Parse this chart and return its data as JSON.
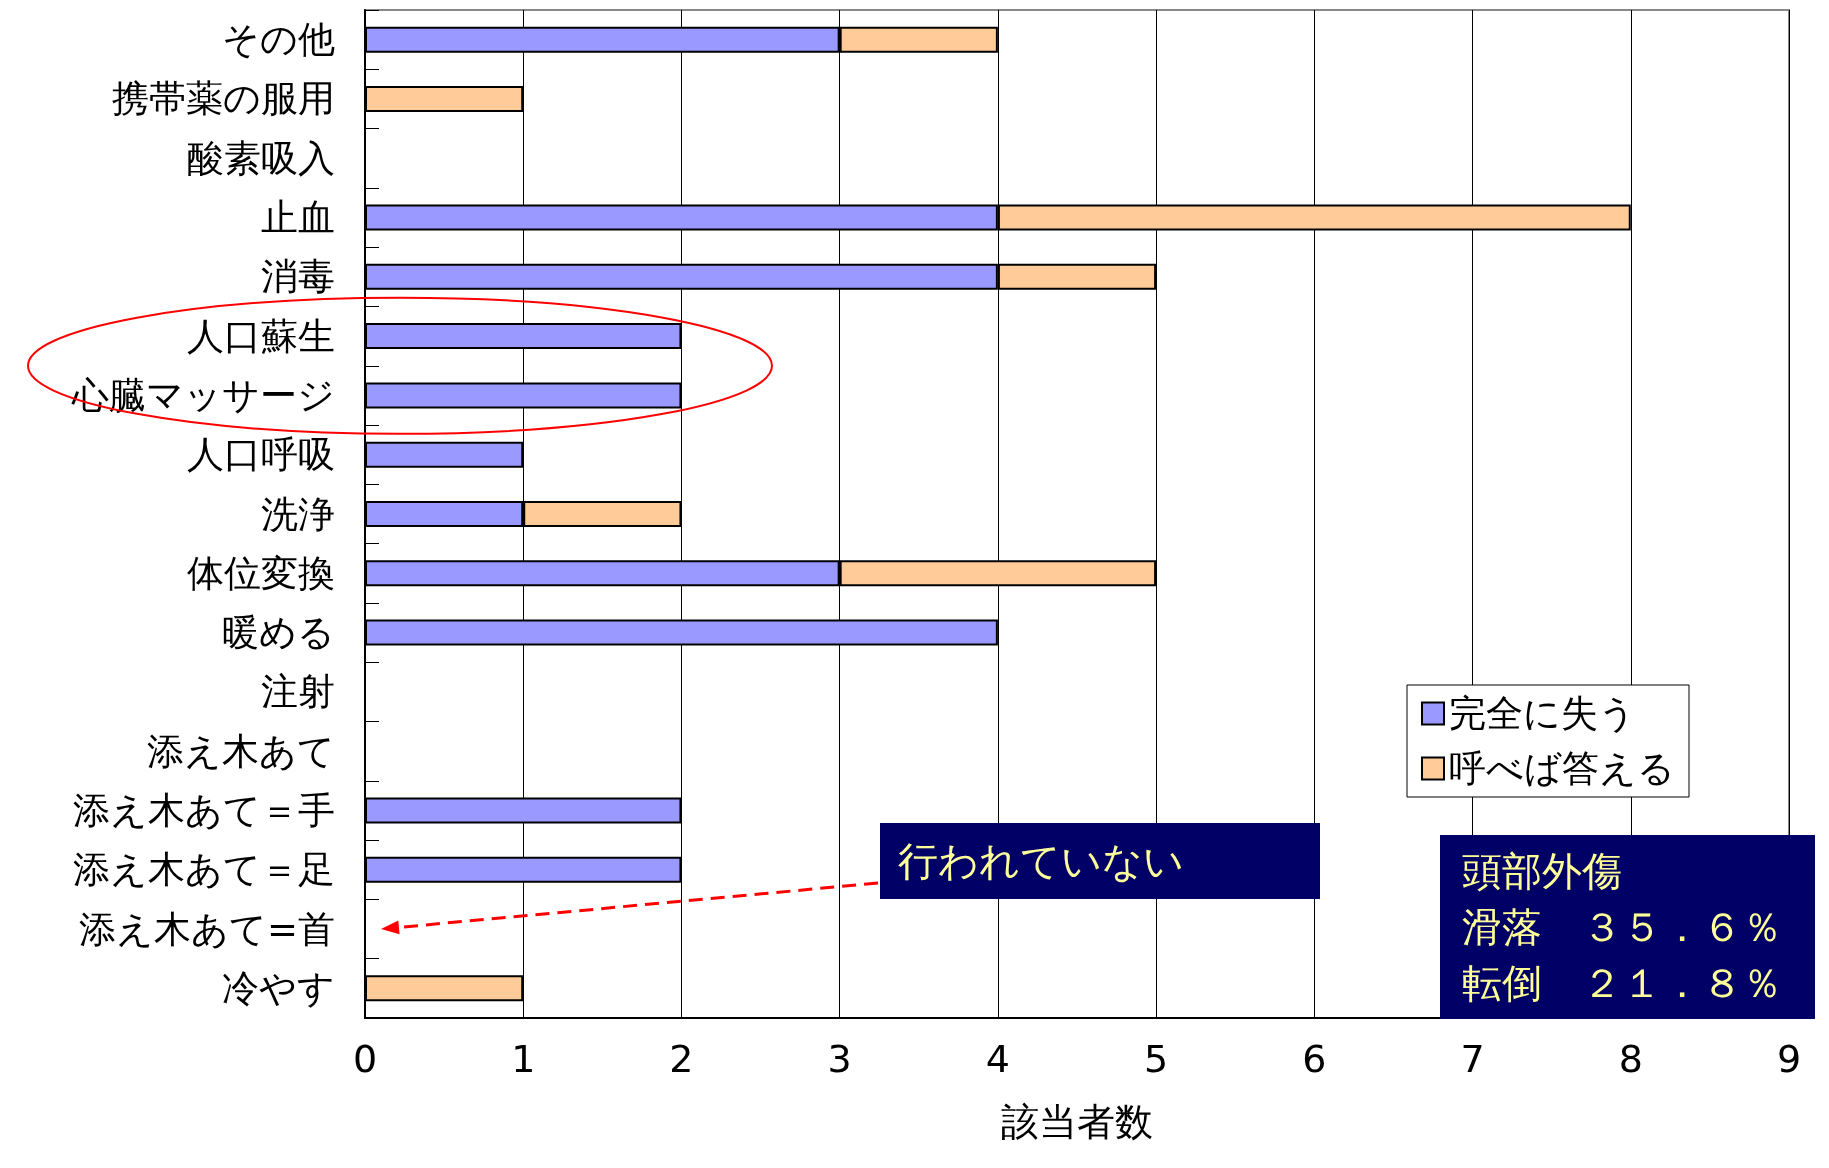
{
  "chart_data": {
    "type": "bar",
    "orientation": "horizontal",
    "stacked": true,
    "categories": [
      "その他",
      "携帯薬の服用",
      "酸素吸入",
      "止血",
      "消毒",
      "人口蘇生",
      "心臓マッサージ",
      "人口呼吸",
      "洗浄",
      "体位変換",
      "暖める",
      "注射",
      "添え木あて",
      "添え木あて＝手",
      "添え木あて＝足",
      "添え木あて=首",
      "冷やす"
    ],
    "series": [
      {
        "name": "完全に失う",
        "color": "#9999ff",
        "values": [
          3,
          null,
          null,
          4,
          4,
          2,
          2,
          1,
          1,
          3,
          4,
          null,
          null,
          2,
          2,
          null,
          null
        ]
      },
      {
        "name": "呼べば答える",
        "color": "#ffcc99",
        "values": [
          1,
          1,
          null,
          4,
          1,
          null,
          null,
          null,
          1,
          2,
          null,
          null,
          null,
          null,
          null,
          null,
          1
        ]
      }
    ],
    "xlabel": "該当者数",
    "xlim": [
      0,
      9
    ],
    "xticks": [
      0,
      1,
      2,
      3,
      4,
      5,
      6,
      7,
      8,
      9
    ],
    "grid": "x",
    "legend": "right",
    "annotations": [
      "行われていない",
      "頭部外傷",
      "滑落　３５．６％",
      "転倒　２１．８％"
    ]
  }
}
